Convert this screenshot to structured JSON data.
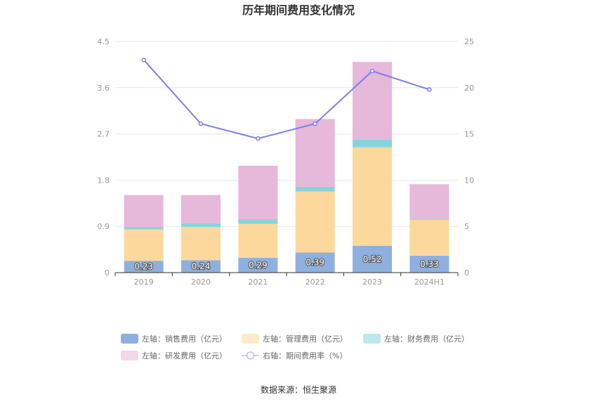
{
  "chart_data": {
    "type": "bar",
    "title": "历年期间费用变化情况",
    "categories": [
      "2019",
      "2020",
      "2021",
      "2022",
      "2023",
      "2024H1"
    ],
    "left_axis": {
      "ticks": [
        "0",
        "0.9",
        "1.8",
        "2.7",
        "3.6",
        "4.5"
      ],
      "ylim": [
        0,
        4.5
      ]
    },
    "right_axis": {
      "ticks": [
        "0",
        "5",
        "10",
        "15",
        "20",
        "25"
      ],
      "ylim": [
        0,
        25
      ]
    },
    "series": [
      {
        "name": "左轴：销售费用（亿元）",
        "type": "bar",
        "axis": "left",
        "color": "#8eb0df",
        "values": [
          0.23,
          0.24,
          0.29,
          0.39,
          0.52,
          0.33
        ],
        "labels": [
          "0.23",
          "0.24",
          "0.29",
          "0.39",
          "0.52",
          "0.33"
        ]
      },
      {
        "name": "左轴：管理费用（亿元）",
        "type": "bar",
        "axis": "left",
        "color": "#fdd89c",
        "values": [
          0.61,
          0.65,
          0.66,
          1.19,
          1.92,
          0.7
        ]
      },
      {
        "name": "左轴：财务费用（亿元）",
        "type": "bar",
        "axis": "left",
        "color": "#85d4db",
        "values": [
          0.05,
          0.07,
          0.09,
          0.09,
          0.15,
          0.02
        ]
      },
      {
        "name": "左轴：研发费用（亿元）",
        "type": "bar",
        "axis": "left",
        "color": "#e6b8d9",
        "values": [
          0.62,
          0.55,
          1.04,
          1.32,
          1.51,
          0.67
        ]
      },
      {
        "name": "右轴：期间费用率（%）",
        "type": "line",
        "axis": "right",
        "color": "#7b7fef",
        "values": [
          23.0,
          16.1,
          14.5,
          16.1,
          21.8,
          19.8
        ]
      }
    ],
    "legend_position": "bottom",
    "grid": true
  },
  "source_text": "数据来源：恒生聚源"
}
